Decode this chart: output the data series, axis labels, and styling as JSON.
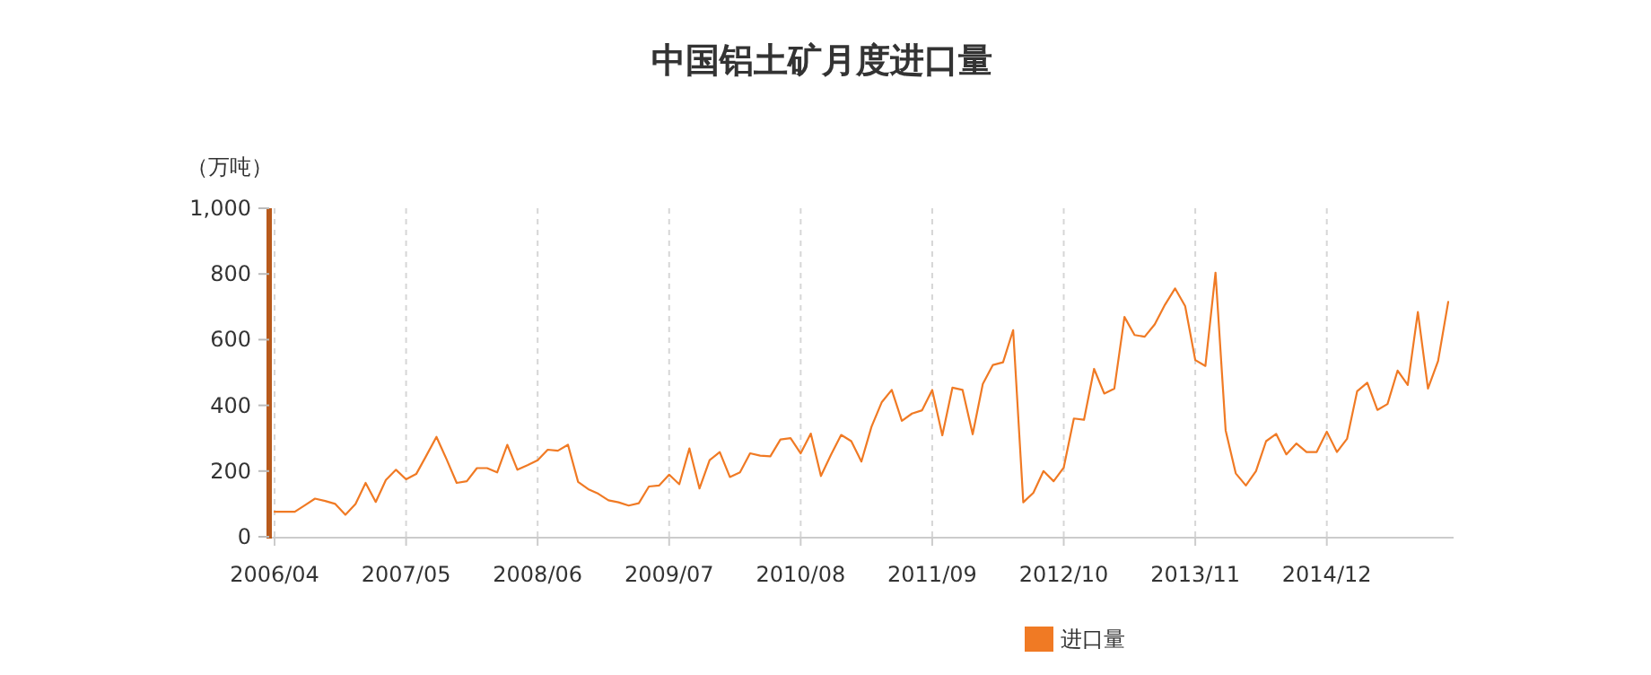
{
  "chart_data": {
    "type": "line",
    "title": "中国铝土矿月度进口量",
    "ylabel": "（万吨）",
    "categories": [
      "2006/04",
      null,
      null,
      null,
      null,
      null,
      null,
      null,
      null,
      null,
      null,
      null,
      null,
      "2007/05",
      null,
      null,
      null,
      null,
      null,
      null,
      null,
      null,
      null,
      null,
      null,
      null,
      "2008/06",
      null,
      null,
      null,
      null,
      null,
      null,
      null,
      null,
      null,
      null,
      null,
      null,
      "2009/07",
      null,
      null,
      null,
      null,
      null,
      null,
      null,
      null,
      null,
      null,
      null,
      null,
      "2010/08",
      null,
      null,
      null,
      null,
      null,
      null,
      null,
      null,
      null,
      null,
      null,
      null,
      "2011/09",
      null,
      null,
      null,
      null,
      null,
      null,
      null,
      null,
      null,
      null,
      null,
      null,
      "2012/10",
      null,
      null,
      null,
      null,
      null,
      null,
      null,
      null,
      null,
      null,
      null,
      null,
      "2013/11",
      null,
      null,
      null,
      null,
      null,
      null,
      null,
      null,
      null,
      null,
      null,
      null,
      "2014/12",
      null,
      null,
      null,
      null,
      null,
      null,
      null,
      null,
      null,
      null,
      null,
      null
    ],
    "series": [
      {
        "name": "进口量",
        "color": "#f07a24",
        "values": [
          76,
          76,
          76,
          96,
          116,
          109,
          100,
          67,
          100,
          164,
          106,
          173,
          204,
          175,
          191,
          247,
          304,
          236,
          164,
          169,
          209,
          209,
          196,
          280,
          204,
          218,
          233,
          265,
          262,
          280,
          167,
          145,
          131,
          111,
          105,
          95,
          102,
          153,
          156,
          189,
          160,
          269,
          147,
          233,
          258,
          182,
          196,
          254,
          247,
          245,
          296,
          300,
          254,
          314,
          185,
          250,
          310,
          291,
          229,
          335,
          409,
          447,
          353,
          375,
          385,
          447,
          309,
          454,
          447,
          312,
          465,
          523,
          531,
          629,
          105,
          134,
          200,
          169,
          211,
          360,
          356,
          511,
          436,
          451,
          669,
          614,
          609,
          647,
          706,
          756,
          702,
          538,
          520,
          804,
          324,
          193,
          156,
          200,
          291,
          313,
          251,
          284,
          258,
          258,
          320,
          258,
          298,
          443,
          469,
          386,
          404,
          506,
          462,
          684,
          451,
          535,
          715
        ]
      }
    ],
    "ylim": [
      0,
      1000
    ],
    "yticks": [
      0,
      200,
      400,
      600,
      800,
      {
        "value": 1000,
        "label": "1,000"
      }
    ],
    "grid": "x",
    "legend": "bottom"
  }
}
